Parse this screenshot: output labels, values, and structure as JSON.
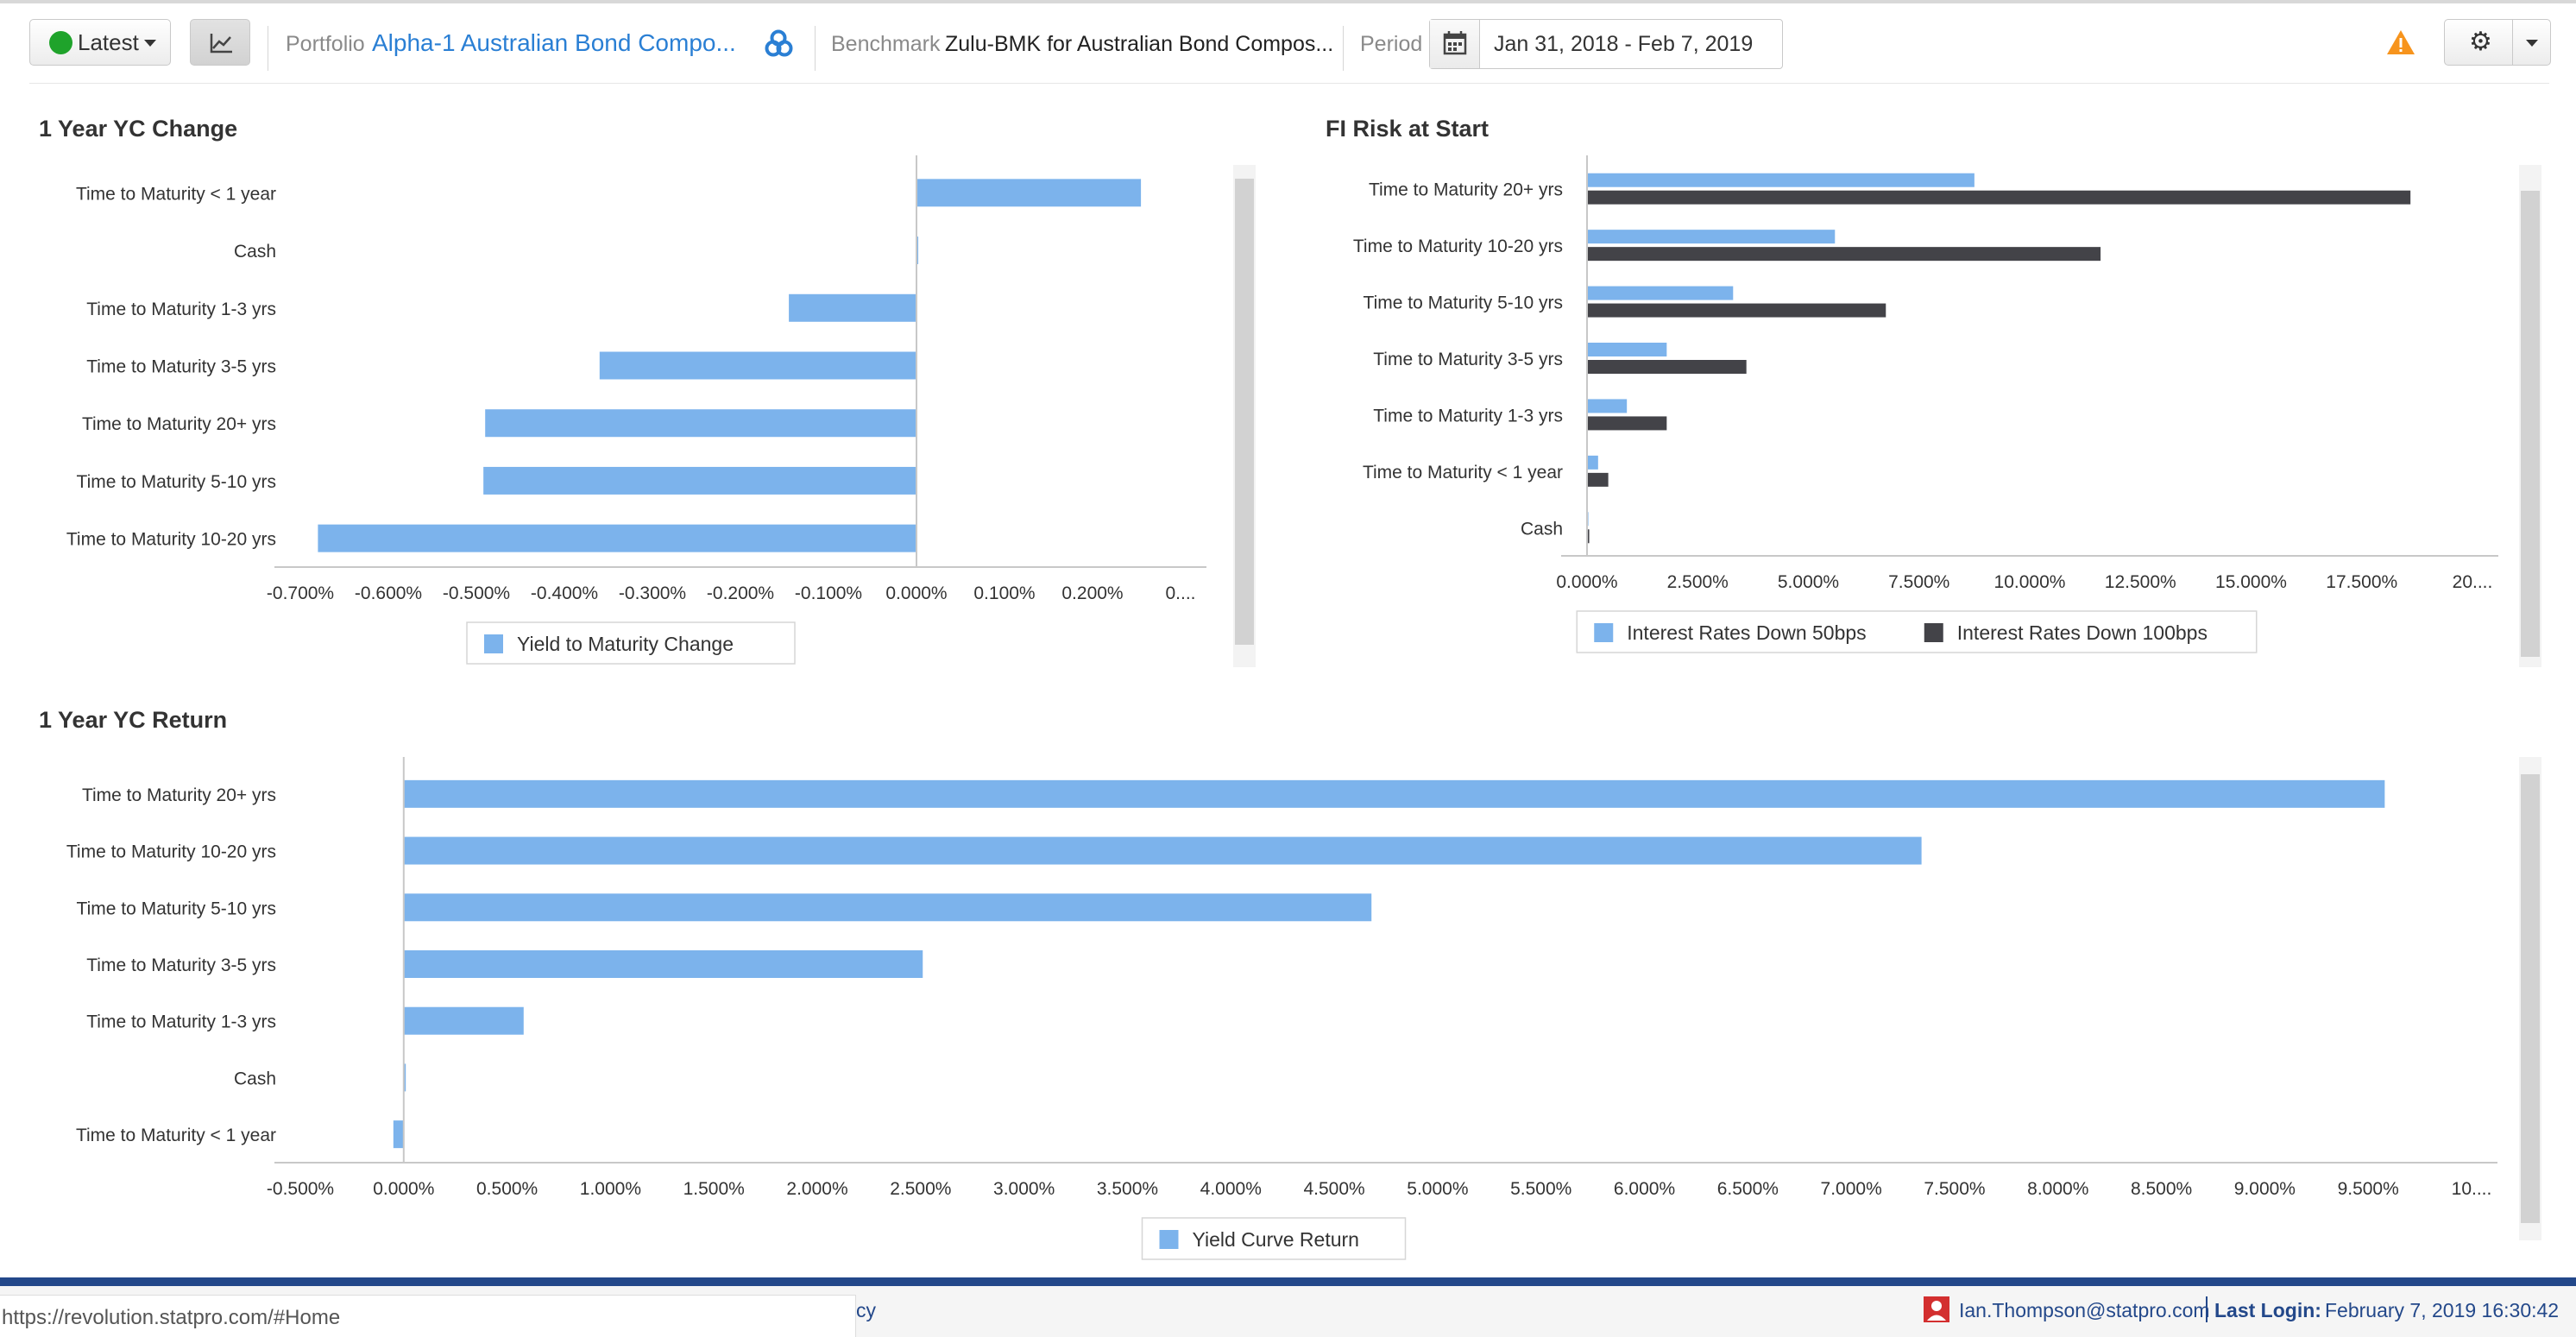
{
  "toolbar": {
    "latest_label": "Latest",
    "status_color": "#1fa32b",
    "portfolio_label": "Portfolio",
    "portfolio_value": "Alpha-1 Australian Bond Compo...",
    "benchmark_label": "Benchmark",
    "benchmark_value": "Zulu-BMK for Australian Bond Compos...",
    "period_label": "Period",
    "period_value": "Jan 31, 2018 - Feb 7, 2019",
    "icons": [
      "line-chart-icon",
      "link-icon",
      "calendar-icon",
      "warning-icon",
      "gear-icon",
      "caret-down-icon"
    ]
  },
  "colors": {
    "series_light": "#7cb3ec",
    "series_dark": "#434348",
    "link": "#2a7fd4"
  },
  "charts": {
    "yc_change": {
      "title": "1 Year YC Change",
      "type": "bar",
      "orientation": "horizontal",
      "categories": [
        "Time to Maturity < 1 year",
        "Cash",
        "Time to Maturity 1-3 yrs",
        "Time to Maturity 3-5 yrs",
        "Time to Maturity 20+ yrs",
        "Time to Maturity 5-10 yrs",
        "Time to Maturity 10-20 yrs"
      ],
      "series": [
        {
          "name": "Yield to Maturity Change",
          "values": [
            0.255,
            0.002,
            -0.145,
            -0.36,
            -0.49,
            -0.492,
            -0.68
          ]
        }
      ],
      "xlim": [
        -0.7,
        0.3
      ],
      "tick_values": [
        -0.7,
        -0.6,
        -0.5,
        -0.4,
        -0.3,
        -0.2,
        -0.1,
        0,
        0.1,
        0.2,
        0.3
      ],
      "tick_labels": [
        "-0.700%",
        "-0.600%",
        "-0.500%",
        "-0.400%",
        "-0.300%",
        "-0.200%",
        "-0.100%",
        "0.000%",
        "0.100%",
        "0.200%",
        "0...."
      ],
      "legend_position": "bottom"
    },
    "fi_risk": {
      "title": "FI Risk at Start",
      "type": "bar",
      "orientation": "horizontal",
      "categories": [
        "Time to Maturity 20+ yrs",
        "Time to Maturity 10-20 yrs",
        "Time to Maturity 5-10 yrs",
        "Time to Maturity 3-5 yrs",
        "Time to Maturity 1-3 yrs",
        "Time to Maturity < 1 year",
        "Cash"
      ],
      "series": [
        {
          "name": "Interest Rates Down 50bps",
          "values": [
            8.75,
            5.6,
            3.3,
            1.8,
            0.9,
            0.25,
            0.03
          ]
        },
        {
          "name": "Interest Rates Down 100bps",
          "values": [
            18.6,
            11.6,
            6.75,
            3.6,
            1.8,
            0.48,
            0.05
          ]
        }
      ],
      "xlim": [
        0,
        20
      ],
      "tick_values": [
        0,
        2.5,
        5,
        7.5,
        10,
        12.5,
        15,
        17.5,
        20
      ],
      "tick_labels": [
        "0.000%",
        "2.500%",
        "5.000%",
        "7.500%",
        "10.000%",
        "12.500%",
        "15.000%",
        "17.500%",
        "20...."
      ],
      "legend_position": "bottom"
    },
    "yc_return": {
      "title": "1 Year YC Return",
      "type": "bar",
      "orientation": "horizontal",
      "categories": [
        "Time to Maturity 20+ yrs",
        "Time to Maturity 10-20 yrs",
        "Time to Maturity 5-10 yrs",
        "Time to Maturity 3-5 yrs",
        "Time to Maturity 1-3 yrs",
        "Cash",
        "Time to Maturity < 1 year"
      ],
      "series": [
        {
          "name": "Yield Curve Return",
          "values": [
            9.58,
            7.34,
            4.68,
            2.51,
            0.58,
            0.01,
            -0.05
          ]
        }
      ],
      "xlim": [
        -0.5,
        10
      ],
      "tick_values": [
        -0.5,
        0,
        0.5,
        1,
        1.5,
        2,
        2.5,
        3,
        3.5,
        4,
        4.5,
        5,
        5.5,
        6,
        6.5,
        7,
        7.5,
        8,
        8.5,
        9,
        9.5,
        10
      ],
      "tick_labels": [
        "-0.500%",
        "0.000%",
        "0.500%",
        "1.000%",
        "1.500%",
        "2.000%",
        "2.500%",
        "3.000%",
        "3.500%",
        "4.000%",
        "4.500%",
        "5.000%",
        "5.500%",
        "6.000%",
        "6.500%",
        "7.000%",
        "7.500%",
        "8.000%",
        "8.500%",
        "9.000%",
        "9.500%",
        "10...."
      ],
      "legend_position": "bottom"
    }
  },
  "footer": {
    "status_url": "https://revolution.statpro.com/#Home",
    "link_fragment": "cy",
    "user_email": "Ian.Thompson@statpro.com",
    "last_login_label": "Last Login:",
    "last_login_value": "February 7, 2019 16:30:42"
  }
}
